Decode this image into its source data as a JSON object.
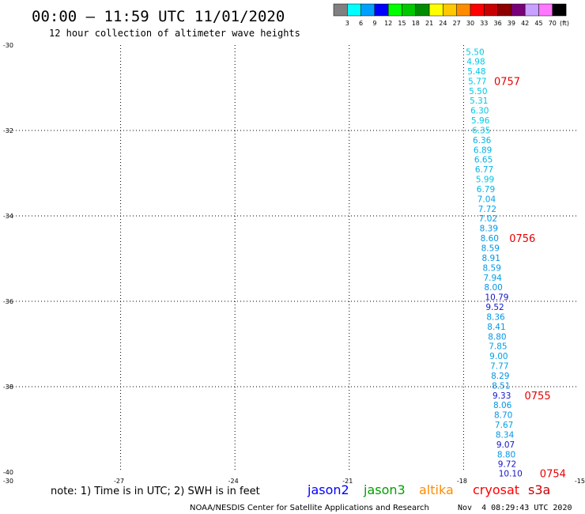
{
  "header": {
    "title": "00:00 – 11:59 UTC 11/01/2020",
    "subtitle": "12 hour collection of altimeter wave heights"
  },
  "colorbar": {
    "colors": [
      "#808080",
      "#00ffff",
      "#00a0ff",
      "#0000ff",
      "#00ff00",
      "#00c800",
      "#008c00",
      "#ffff00",
      "#ffc800",
      "#ff8c00",
      "#ff0000",
      "#c80000",
      "#8c0000",
      "#780078",
      "#c8a0ff",
      "#ff78ff",
      "#000000"
    ],
    "labels": [
      "3",
      "6",
      "9",
      "12",
      "15",
      "18",
      "21",
      "24",
      "27",
      "30",
      "33",
      "36",
      "39",
      "42",
      "45",
      "70"
    ],
    "unit": "(ft)"
  },
  "footer": {
    "note": "note: 1) Time is in UTC; 2) SWH is in feet",
    "satellites": [
      {
        "name": "jason2",
        "color": "#0000ff"
      },
      {
        "name": "jason3",
        "color": "#00a000"
      },
      {
        "name": "altika",
        "color": "#ff8c00"
      },
      {
        "name": "cryosat",
        "color": "#ff0000"
      },
      {
        "name": "s3a",
        "color": "#c80000"
      }
    ],
    "credit": "NOAA/NESDIS Center for Satellite Applications and Research",
    "timestamp": "Nov  4 08:29:43 UTC 2020"
  },
  "chart_data": {
    "type": "scatter",
    "xlim": [
      -30,
      -15
    ],
    "ylim": [
      -40,
      -30
    ],
    "x_ticks": [
      "-30",
      "-27",
      "-24",
      "-21",
      "-18",
      "-15"
    ],
    "y_ticks": [
      "-30",
      "-32",
      "-34",
      "-36",
      "-38",
      "-40"
    ],
    "grid": true,
    "points": [
      {
        "lon": -17.94,
        "lat": -30.16,
        "v": "5.50",
        "c": "#00c8e6"
      },
      {
        "lon": -17.92,
        "lat": -30.38,
        "v": "4.98",
        "c": "#00c8e6"
      },
      {
        "lon": -17.9,
        "lat": -30.61,
        "v": "5.48",
        "c": "#00c8e6"
      },
      {
        "lon": -17.88,
        "lat": -30.84,
        "v": "5.77",
        "c": "#00c8e6"
      },
      {
        "lon": -17.86,
        "lat": -31.07,
        "v": "5.50",
        "c": "#00c8e6"
      },
      {
        "lon": -17.84,
        "lat": -31.3,
        "v": "5.31",
        "c": "#00c8e6"
      },
      {
        "lon": -17.82,
        "lat": -31.53,
        "v": "6.30",
        "c": "#00c8e6"
      },
      {
        "lon": -17.8,
        "lat": -31.76,
        "v": "5.96",
        "c": "#00c8e6"
      },
      {
        "lon": -17.78,
        "lat": -31.99,
        "v": "6.35",
        "c": "#00c8e6"
      },
      {
        "lon": -17.76,
        "lat": -32.22,
        "v": "6.36",
        "c": "#00b4e6"
      },
      {
        "lon": -17.74,
        "lat": -32.45,
        "v": "6.89",
        "c": "#00b4e6"
      },
      {
        "lon": -17.72,
        "lat": -32.68,
        "v": "6.65",
        "c": "#00b4e6"
      },
      {
        "lon": -17.7,
        "lat": -32.91,
        "v": "6.77",
        "c": "#00b4e6"
      },
      {
        "lon": -17.68,
        "lat": -33.14,
        "v": "5.99",
        "c": "#00c8e6"
      },
      {
        "lon": -17.66,
        "lat": -33.37,
        "v": "6.79",
        "c": "#00b4e6"
      },
      {
        "lon": -17.64,
        "lat": -33.6,
        "v": "7.04",
        "c": "#00a0e6"
      },
      {
        "lon": -17.62,
        "lat": -33.83,
        "v": "7.72",
        "c": "#00a0e6"
      },
      {
        "lon": -17.6,
        "lat": -34.06,
        "v": "7.02",
        "c": "#00a0e6"
      },
      {
        "lon": -17.58,
        "lat": -34.29,
        "v": "8.39",
        "c": "#0096e6"
      },
      {
        "lon": -17.56,
        "lat": -34.52,
        "v": "8.60",
        "c": "#0096e6"
      },
      {
        "lon": -17.54,
        "lat": -34.75,
        "v": "8.59",
        "c": "#0096e6"
      },
      {
        "lon": -17.52,
        "lat": -34.98,
        "v": "8.91",
        "c": "#0096e6"
      },
      {
        "lon": -17.5,
        "lat": -35.21,
        "v": "8.59",
        "c": "#0096e6"
      },
      {
        "lon": -17.48,
        "lat": -35.44,
        "v": "7.94",
        "c": "#00a0e6"
      },
      {
        "lon": -17.46,
        "lat": -35.67,
        "v": "8.00",
        "c": "#0096e6"
      },
      {
        "lon": -17.44,
        "lat": -35.9,
        "v": "10.79",
        "c": "#1414c8"
      },
      {
        "lon": -17.42,
        "lat": -36.13,
        "v": "9.52",
        "c": "#1414c8"
      },
      {
        "lon": -17.4,
        "lat": -36.36,
        "v": "8.36",
        "c": "#0096e6"
      },
      {
        "lon": -17.38,
        "lat": -36.59,
        "v": "8.41",
        "c": "#0096e6"
      },
      {
        "lon": -17.36,
        "lat": -36.82,
        "v": "8.80",
        "c": "#0096e6"
      },
      {
        "lon": -17.34,
        "lat": -37.05,
        "v": "7.85",
        "c": "#00a0e6"
      },
      {
        "lon": -17.32,
        "lat": -37.28,
        "v": "9.00",
        "c": "#00a0e6"
      },
      {
        "lon": -17.3,
        "lat": -37.51,
        "v": "7.77",
        "c": "#00a0e6"
      },
      {
        "lon": -17.28,
        "lat": -37.74,
        "v": "8.29",
        "c": "#0096e6"
      },
      {
        "lon": -17.26,
        "lat": -37.97,
        "v": "8.51",
        "c": "#0096e6"
      },
      {
        "lon": -17.24,
        "lat": -38.2,
        "v": "9.33",
        "c": "#1414c8"
      },
      {
        "lon": -17.22,
        "lat": -38.43,
        "v": "8.06",
        "c": "#0096e6"
      },
      {
        "lon": -17.2,
        "lat": -38.66,
        "v": "8.70",
        "c": "#0096e6"
      },
      {
        "lon": -17.18,
        "lat": -38.89,
        "v": "7.67",
        "c": "#00a0e6"
      },
      {
        "lon": -17.16,
        "lat": -39.12,
        "v": "8.34",
        "c": "#0096e6"
      },
      {
        "lon": -17.14,
        "lat": -39.35,
        "v": "9.07",
        "c": "#1414c8"
      },
      {
        "lon": -17.12,
        "lat": -39.58,
        "v": "8.80",
        "c": "#0096e6"
      },
      {
        "lon": -17.1,
        "lat": -39.81,
        "v": "9.72",
        "c": "#1414c8"
      },
      {
        "lon": -17.08,
        "lat": -40.03,
        "v": "10.10",
        "c": "#1414c8"
      }
    ],
    "time_labels": [
      {
        "lon": -17.2,
        "lat": -30.84,
        "text": "0757",
        "c": "#e60000"
      },
      {
        "lon": -16.8,
        "lat": -34.52,
        "text": "0756",
        "c": "#e60000"
      },
      {
        "lon": -16.4,
        "lat": -38.2,
        "text": "0755",
        "c": "#e60000"
      },
      {
        "lon": -16.0,
        "lat": -40.03,
        "text": "0754",
        "c": "#e60000"
      }
    ]
  }
}
